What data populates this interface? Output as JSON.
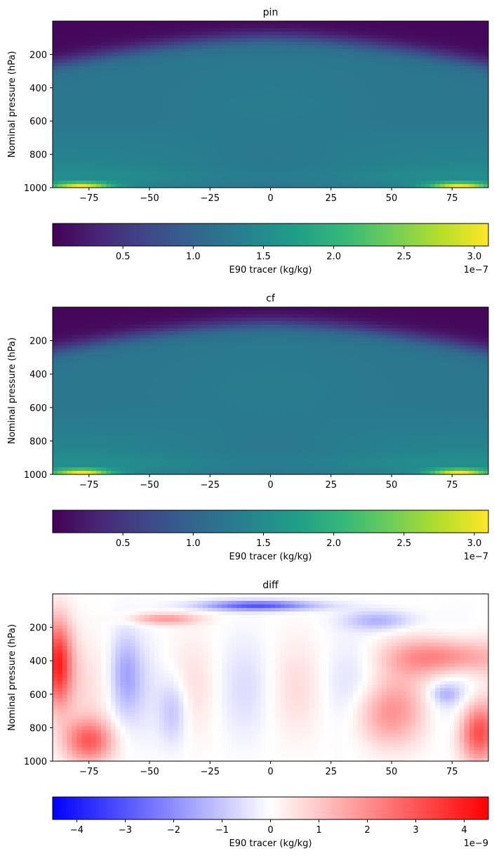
{
  "chart_data": [
    {
      "type": "heatmap",
      "title": "pin",
      "xlabel": "",
      "ylabel": "Nominal pressure (hPa)",
      "xlim": [
        -90,
        90
      ],
      "ylim": [
        1000,
        0
      ],
      "xticks": [
        -75,
        -50,
        -25,
        0,
        25,
        50,
        75
      ],
      "xtick_labels": [
        "−75",
        "−50",
        "−25",
        "0",
        "25",
        "50",
        "75"
      ],
      "yticks": [
        200,
        400,
        600,
        800,
        1000
      ],
      "ytick_labels": [
        "200",
        "400",
        "600",
        "800",
        "1000"
      ],
      "colormap": "viridis",
      "field": "pin",
      "colorbar": {
        "label": "E90 tracer (kg/kg)",
        "range": [
          0,
          3.1e-07
        ],
        "ticks": [
          0.5,
          1.0,
          1.5,
          2.0,
          2.5,
          3.0
        ],
        "tick_labels": [
          "0.5",
          "1.0",
          "1.5",
          "2.0",
          "2.5",
          "3.0"
        ],
        "offset_label": "1e−7",
        "orientation": "horizontal"
      }
    },
    {
      "type": "heatmap",
      "title": "cf",
      "xlabel": "",
      "ylabel": "Nominal pressure (hPa)",
      "xlim": [
        -90,
        90
      ],
      "ylim": [
        1000,
        0
      ],
      "xticks": [
        -75,
        -50,
        -25,
        0,
        25,
        50,
        75
      ],
      "xtick_labels": [
        "−75",
        "−50",
        "−25",
        "0",
        "25",
        "50",
        "75"
      ],
      "yticks": [
        200,
        400,
        600,
        800,
        1000
      ],
      "ytick_labels": [
        "200",
        "400",
        "600",
        "800",
        "1000"
      ],
      "colormap": "viridis",
      "field": "cf",
      "colorbar": {
        "label": "E90 tracer (kg/kg)",
        "range": [
          0,
          3.1e-07
        ],
        "ticks": [
          0.5,
          1.0,
          1.5,
          2.0,
          2.5,
          3.0
        ],
        "tick_labels": [
          "0.5",
          "1.0",
          "1.5",
          "2.0",
          "2.5",
          "3.0"
        ],
        "offset_label": "1e−7",
        "orientation": "horizontal"
      }
    },
    {
      "type": "heatmap",
      "title": "diff",
      "xlabel": "",
      "ylabel": "Nominal pressure (hPa)",
      "xlim": [
        -90,
        90
      ],
      "ylim": [
        1000,
        0
      ],
      "xticks": [
        -75,
        -50,
        -25,
        0,
        25,
        50,
        75
      ],
      "xtick_labels": [
        "−75",
        "−50",
        "−25",
        "0",
        "25",
        "50",
        "75"
      ],
      "yticks": [
        200,
        400,
        600,
        800,
        1000
      ],
      "ytick_labels": [
        "200",
        "400",
        "600",
        "800",
        "1000"
      ],
      "colormap": "bwr",
      "field": "diff",
      "colorbar": {
        "label": "E90 tracer (kg/kg)",
        "range": [
          -4.5e-09,
          4.5e-09
        ],
        "ticks": [
          -4,
          -3,
          -2,
          -1,
          0,
          1,
          2,
          3,
          4
        ],
        "tick_labels": [
          "−4",
          "−3",
          "−2",
          "−1",
          "0",
          "1",
          "2",
          "3",
          "4"
        ],
        "offset_label": "1e−9",
        "orientation": "horizontal"
      }
    }
  ]
}
